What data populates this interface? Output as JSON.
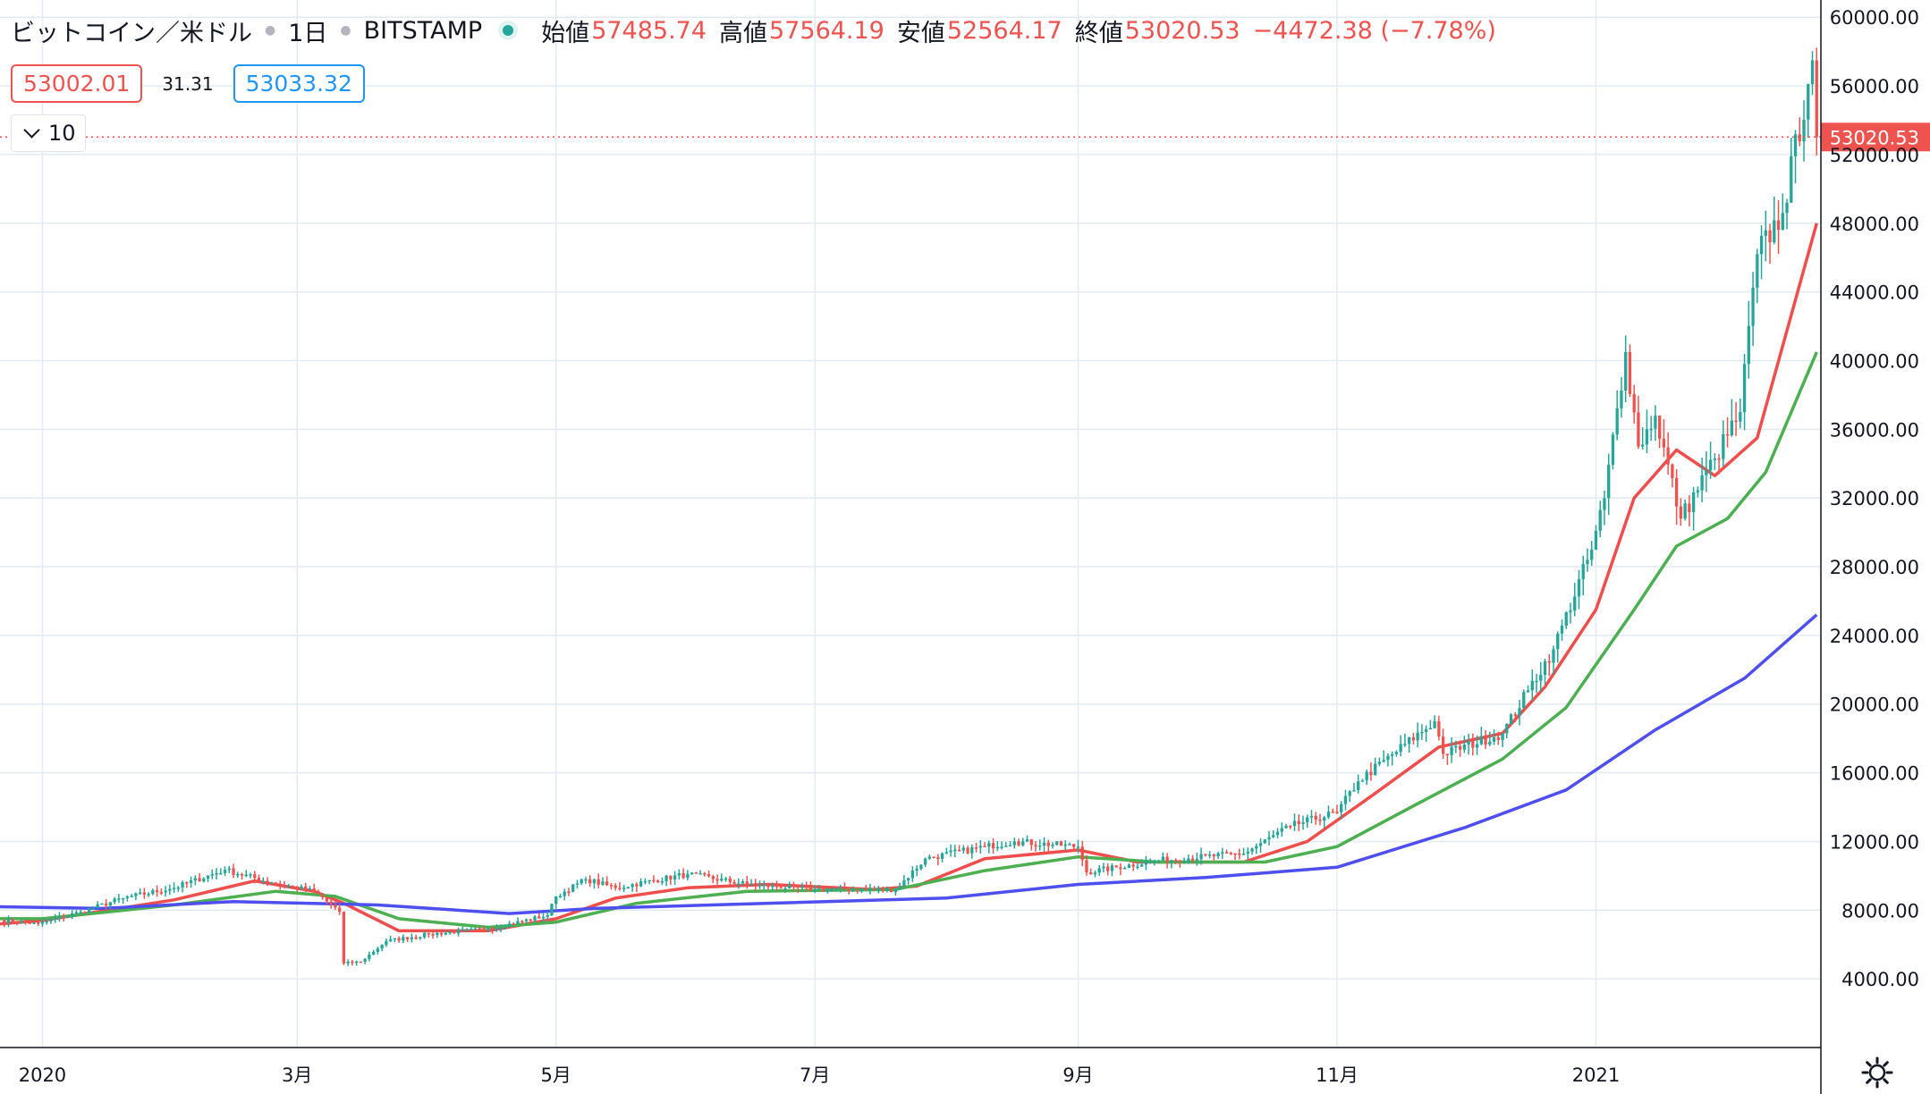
{
  "header": {
    "symbol": "ビットコイン／米ドル",
    "interval": "1日",
    "exchange": "BITSTAMP",
    "open_label": "始値",
    "open_value": "57485.74",
    "high_label": "高値",
    "high_value": "57564.19",
    "low_label": "安値",
    "low_value": "52564.17",
    "close_label": "終値",
    "close_value": "53020.53",
    "change": "−4472.38 (−7.78%)"
  },
  "quote": {
    "bid": "53002.01",
    "spread": "31.31",
    "ask": "53033.32"
  },
  "indicators_toggle": {
    "count": "10"
  },
  "colors": {
    "up": "#26a69a",
    "down": "#ef5350",
    "ma_short": "#f04d4d",
    "ma_mid": "#4caf50",
    "ma_long": "#4f4ff0",
    "grid": "#e1ecf2",
    "last_price": "#ef5350"
  },
  "chart_data": {
    "type": "candlestick",
    "x_range": [
      "2019-12-22",
      "2021-02-23"
    ],
    "y_range": [
      0,
      61000
    ],
    "y_ticks": [
      "60000.00",
      "56000.00",
      "52000.00",
      "48000.00",
      "44000.00",
      "40000.00",
      "36000.00",
      "32000.00",
      "28000.00",
      "24000.00",
      "20000.00",
      "16000.00",
      "12000.00",
      "8000.00",
      "4000.00"
    ],
    "x_ticks": [
      {
        "date": "2020-01-01",
        "label": "2020"
      },
      {
        "date": "2020-03-01",
        "label": "3月"
      },
      {
        "date": "2020-05-01",
        "label": "5月"
      },
      {
        "date": "2020-07-01",
        "label": "7月"
      },
      {
        "date": "2020-09-01",
        "label": "9月"
      },
      {
        "date": "2020-11-01",
        "label": "11月"
      },
      {
        "date": "2021-01-01",
        "label": "2021"
      }
    ],
    "last_price": "53020.53",
    "price_anchors": [
      [
        "2019-12-22",
        7400
      ],
      [
        "2019-12-31",
        7200
      ],
      [
        "2020-01-10",
        7900
      ],
      [
        "2020-01-20",
        8700
      ],
      [
        "2020-02-01",
        9300
      ],
      [
        "2020-02-13",
        10350
      ],
      [
        "2020-02-24",
        9600
      ],
      [
        "2020-03-05",
        9100
      ],
      [
        "2020-03-11",
        7900
      ],
      [
        "2020-03-12",
        4900
      ],
      [
        "2020-03-16",
        5000
      ],
      [
        "2020-03-22",
        6200
      ],
      [
        "2020-04-01",
        6600
      ],
      [
        "2020-04-15",
        6900
      ],
      [
        "2020-04-29",
        7700
      ],
      [
        "2020-05-01",
        8800
      ],
      [
        "2020-05-08",
        9800
      ],
      [
        "2020-05-15",
        9300
      ],
      [
        "2020-06-01",
        10100
      ],
      [
        "2020-06-15",
        9500
      ],
      [
        "2020-07-01",
        9200
      ],
      [
        "2020-07-20",
        9200
      ],
      [
        "2020-07-27",
        11000
      ],
      [
        "2020-08-10",
        11700
      ],
      [
        "2020-08-17",
        12000
      ],
      [
        "2020-09-01",
        11700
      ],
      [
        "2020-09-03",
        10200
      ],
      [
        "2020-09-20",
        10900
      ],
      [
        "2020-10-10",
        11300
      ],
      [
        "2020-10-21",
        12900
      ],
      [
        "2020-11-01",
        13700
      ],
      [
        "2020-11-06",
        15500
      ],
      [
        "2020-11-24",
        19000
      ],
      [
        "2020-11-26",
        17100
      ],
      [
        "2020-12-10",
        18300
      ],
      [
        "2020-12-16",
        20800
      ],
      [
        "2020-12-22",
        23200
      ],
      [
        "2020-12-31",
        29000
      ],
      [
        "2021-01-03",
        32000
      ],
      [
        "2021-01-08",
        40500
      ],
      [
        "2021-01-11",
        35000
      ],
      [
        "2021-01-15",
        36800
      ],
      [
        "2021-01-21",
        30800
      ],
      [
        "2021-01-29",
        34300
      ],
      [
        "2021-02-04",
        37000
      ],
      [
        "2021-02-08",
        46200
      ],
      [
        "2021-02-14",
        48600
      ],
      [
        "2021-02-20",
        56100
      ],
      [
        "2021-02-21",
        57485.74
      ],
      [
        "2021-02-22",
        53020.53
      ]
    ],
    "moving_averages": [
      {
        "period_hint": "short",
        "color": "#f04d4d",
        "points": [
          [
            "2019-12-22",
            7200
          ],
          [
            "2020-01-01",
            7400
          ],
          [
            "2020-02-01",
            8600
          ],
          [
            "2020-02-20",
            9700
          ],
          [
            "2020-03-05",
            9100
          ],
          [
            "2020-03-12",
            8400
          ],
          [
            "2020-03-25",
            6800
          ],
          [
            "2020-04-15",
            6800
          ],
          [
            "2020-05-01",
            7500
          ],
          [
            "2020-05-15",
            8700
          ],
          [
            "2020-06-01",
            9300
          ],
          [
            "2020-06-20",
            9500
          ],
          [
            "2020-07-15",
            9200
          ],
          [
            "2020-07-25",
            9400
          ],
          [
            "2020-08-10",
            11000
          ],
          [
            "2020-09-01",
            11500
          ],
          [
            "2020-09-15",
            10800
          ],
          [
            "2020-10-10",
            10800
          ],
          [
            "2020-10-25",
            12000
          ],
          [
            "2020-11-10",
            14800
          ],
          [
            "2020-11-25",
            17500
          ],
          [
            "2020-12-10",
            18300
          ],
          [
            "2020-12-20",
            21000
          ],
          [
            "2021-01-01",
            25500
          ],
          [
            "2021-01-10",
            32000
          ],
          [
            "2021-01-20",
            34800
          ],
          [
            "2021-01-29",
            33300
          ],
          [
            "2021-02-08",
            35500
          ],
          [
            "2021-02-22",
            48000
          ]
        ]
      },
      {
        "period_hint": "mid",
        "color": "#4caf50",
        "points": [
          [
            "2019-12-22",
            7500
          ],
          [
            "2020-01-01",
            7500
          ],
          [
            "2020-02-01",
            8300
          ],
          [
            "2020-02-25",
            9100
          ],
          [
            "2020-03-10",
            8800
          ],
          [
            "2020-03-25",
            7500
          ],
          [
            "2020-04-15",
            7000
          ],
          [
            "2020-05-01",
            7300
          ],
          [
            "2020-05-20",
            8400
          ],
          [
            "2020-06-15",
            9100
          ],
          [
            "2020-07-20",
            9200
          ],
          [
            "2020-08-10",
            10300
          ],
          [
            "2020-09-01",
            11100
          ],
          [
            "2020-09-20",
            10800
          ],
          [
            "2020-10-15",
            10800
          ],
          [
            "2020-11-01",
            11700
          ],
          [
            "2020-11-20",
            14200
          ],
          [
            "2020-12-10",
            16800
          ],
          [
            "2020-12-25",
            19800
          ],
          [
            "2021-01-10",
            25500
          ],
          [
            "2021-01-20",
            29200
          ],
          [
            "2021-02-01",
            30800
          ],
          [
            "2021-02-10",
            33500
          ],
          [
            "2021-02-22",
            40500
          ]
        ]
      },
      {
        "period_hint": "long",
        "color": "#4f4ff0",
        "points": [
          [
            "2019-12-22",
            8200
          ],
          [
            "2020-01-15",
            8100
          ],
          [
            "2020-02-15",
            8500
          ],
          [
            "2020-03-20",
            8300
          ],
          [
            "2020-04-20",
            7800
          ],
          [
            "2020-05-10",
            8100
          ],
          [
            "2020-06-20",
            8400
          ],
          [
            "2020-08-01",
            8700
          ],
          [
            "2020-09-01",
            9500
          ],
          [
            "2020-10-01",
            9900
          ],
          [
            "2020-11-01",
            10500
          ],
          [
            "2020-12-01",
            12800
          ],
          [
            "2020-12-25",
            15000
          ],
          [
            "2021-01-15",
            18500
          ],
          [
            "2021-02-05",
            21500
          ],
          [
            "2021-02-22",
            25200
          ]
        ]
      }
    ]
  }
}
